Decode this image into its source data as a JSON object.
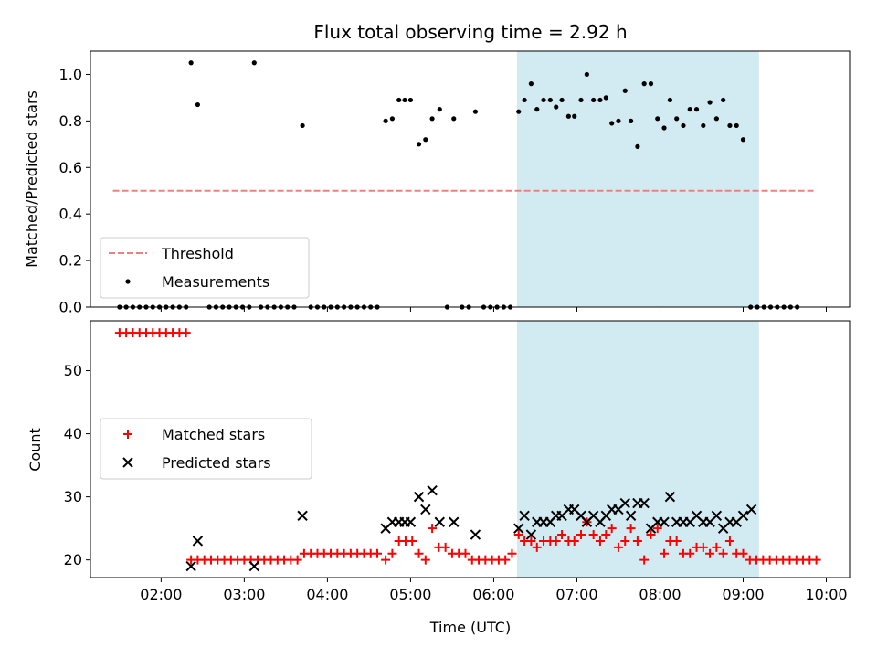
{
  "chart_data": [
    {
      "type": "scatter",
      "title": "Flux total observing time = 2.92 h",
      "ylabel": "Matched/Predicted stars",
      "xlabel": "",
      "xlim": [
        1.15,
        10.28
      ],
      "ylim": [
        0.0,
        1.1
      ],
      "yticks": [
        0.0,
        0.2,
        0.4,
        0.6,
        0.8,
        1.0
      ],
      "xticks": [
        2,
        3,
        4,
        5,
        6,
        7,
        8,
        9,
        10
      ],
      "shaded_span": [
        6.28,
        9.19
      ],
      "shaded_color": "#add8e6",
      "legend_position": "lower-left",
      "threshold": {
        "name": "Threshold",
        "x": [
          1.42,
          9.85
        ],
        "y": 0.5,
        "color": "#f08080",
        "style": "dashed"
      },
      "series": [
        {
          "name": "Measurements",
          "color": "#000000",
          "marker": "dot",
          "points": [
            [
              1.5,
              0
            ],
            [
              1.58,
              0
            ],
            [
              1.66,
              0
            ],
            [
              1.74,
              0
            ],
            [
              1.82,
              0
            ],
            [
              1.9,
              0
            ],
            [
              1.98,
              0
            ],
            [
              2.06,
              0
            ],
            [
              2.14,
              0
            ],
            [
              2.22,
              0
            ],
            [
              2.3,
              0
            ],
            [
              2.36,
              1.05
            ],
            [
              2.44,
              0.87
            ],
            [
              2.58,
              0
            ],
            [
              2.66,
              0
            ],
            [
              2.74,
              0
            ],
            [
              2.82,
              0
            ],
            [
              2.9,
              0
            ],
            [
              2.98,
              0
            ],
            [
              3.06,
              0
            ],
            [
              3.12,
              1.05
            ],
            [
              3.2,
              0
            ],
            [
              3.28,
              0
            ],
            [
              3.36,
              0
            ],
            [
              3.44,
              0
            ],
            [
              3.52,
              0
            ],
            [
              3.6,
              0
            ],
            [
              3.7,
              0.78
            ],
            [
              3.8,
              0
            ],
            [
              3.88,
              0
            ],
            [
              3.96,
              0
            ],
            [
              4.04,
              0
            ],
            [
              4.12,
              0
            ],
            [
              4.2,
              0
            ],
            [
              4.28,
              0
            ],
            [
              4.36,
              0
            ],
            [
              4.44,
              0
            ],
            [
              4.52,
              0
            ],
            [
              4.6,
              0
            ],
            [
              4.7,
              0.8
            ],
            [
              4.78,
              0.81
            ],
            [
              4.86,
              0.89
            ],
            [
              4.93,
              0.89
            ],
            [
              5.0,
              0.89
            ],
            [
              5.1,
              0.7
            ],
            [
              5.18,
              0.72
            ],
            [
              5.26,
              0.81
            ],
            [
              5.35,
              0.85
            ],
            [
              5.44,
              0
            ],
            [
              5.52,
              0.81
            ],
            [
              5.62,
              0
            ],
            [
              5.7,
              0
            ],
            [
              5.78,
              0.84
            ],
            [
              5.88,
              0
            ],
            [
              5.96,
              0
            ],
            [
              6.04,
              0
            ],
            [
              6.12,
              0
            ],
            [
              6.2,
              0
            ],
            [
              6.3,
              0.84
            ],
            [
              6.37,
              0.89
            ],
            [
              6.45,
              0.96
            ],
            [
              6.52,
              0.85
            ],
            [
              6.6,
              0.89
            ],
            [
              6.68,
              0.89
            ],
            [
              6.75,
              0.86
            ],
            [
              6.82,
              0.89
            ],
            [
              6.9,
              0.82
            ],
            [
              6.97,
              0.82
            ],
            [
              7.05,
              0.89
            ],
            [
              7.12,
              1.0
            ],
            [
              7.2,
              0.89
            ],
            [
              7.28,
              0.89
            ],
            [
              7.35,
              0.9
            ],
            [
              7.42,
              0.79
            ],
            [
              7.5,
              0.8
            ],
            [
              7.58,
              0.93
            ],
            [
              7.65,
              0.8
            ],
            [
              7.73,
              0.69
            ],
            [
              7.81,
              0.96
            ],
            [
              7.89,
              0.96
            ],
            [
              7.97,
              0.81
            ],
            [
              8.05,
              0.77
            ],
            [
              8.12,
              0.89
            ],
            [
              8.2,
              0.81
            ],
            [
              8.28,
              0.78
            ],
            [
              8.36,
              0.85
            ],
            [
              8.44,
              0.85
            ],
            [
              8.52,
              0.78
            ],
            [
              8.6,
              0.88
            ],
            [
              8.68,
              0.81
            ],
            [
              8.76,
              0.89
            ],
            [
              8.84,
              0.78
            ],
            [
              8.92,
              0.78
            ],
            [
              9.0,
              0.72
            ],
            [
              9.09,
              0
            ],
            [
              9.17,
              0
            ],
            [
              9.25,
              0
            ],
            [
              9.33,
              0
            ],
            [
              9.41,
              0
            ],
            [
              9.49,
              0
            ],
            [
              9.57,
              0
            ],
            [
              9.65,
              0
            ]
          ]
        }
      ]
    },
    {
      "type": "scatter",
      "title": "",
      "ylabel": "Count",
      "xlabel": "Time (UTC)",
      "xlim": [
        1.15,
        10.28
      ],
      "ylim": [
        17.2,
        57.9
      ],
      "yticks": [
        20,
        30,
        40,
        50
      ],
      "xticks": [
        2,
        3,
        4,
        5,
        6,
        7,
        8,
        9,
        10
      ],
      "xtick_labels": [
        "02:00",
        "03:00",
        "04:00",
        "05:00",
        "06:00",
        "07:00",
        "08:00",
        "09:00",
        "10:00"
      ],
      "shaded_span": [
        6.28,
        9.19
      ],
      "shaded_color": "#add8e6",
      "legend_position": "center-left",
      "series": [
        {
          "name": "Matched stars",
          "color": "#ff0000",
          "marker": "plus",
          "points": [
            [
              1.5,
              56
            ],
            [
              1.58,
              56
            ],
            [
              1.66,
              56
            ],
            [
              1.74,
              56
            ],
            [
              1.82,
              56
            ],
            [
              1.9,
              56
            ],
            [
              1.98,
              56
            ],
            [
              2.06,
              56
            ],
            [
              2.14,
              56
            ],
            [
              2.22,
              56
            ],
            [
              2.3,
              56
            ],
            [
              2.36,
              20
            ],
            [
              2.44,
              20
            ],
            [
              2.52,
              20
            ],
            [
              2.6,
              20
            ],
            [
              2.68,
              20
            ],
            [
              2.76,
              20
            ],
            [
              2.84,
              20
            ],
            [
              2.92,
              20
            ],
            [
              3.0,
              20
            ],
            [
              3.08,
              20
            ],
            [
              3.16,
              20
            ],
            [
              3.24,
              20
            ],
            [
              3.32,
              20
            ],
            [
              3.4,
              20
            ],
            [
              3.48,
              20
            ],
            [
              3.56,
              20
            ],
            [
              3.64,
              20
            ],
            [
              3.72,
              21
            ],
            [
              3.8,
              21
            ],
            [
              3.88,
              21
            ],
            [
              3.96,
              21
            ],
            [
              4.04,
              21
            ],
            [
              4.12,
              21
            ],
            [
              4.2,
              21
            ],
            [
              4.28,
              21
            ],
            [
              4.36,
              21
            ],
            [
              4.44,
              21
            ],
            [
              4.52,
              21
            ],
            [
              4.6,
              21
            ],
            [
              4.7,
              20
            ],
            [
              4.78,
              21
            ],
            [
              4.86,
              23
            ],
            [
              4.94,
              23
            ],
            [
              5.02,
              23
            ],
            [
              5.1,
              21
            ],
            [
              5.18,
              20
            ],
            [
              5.26,
              25
            ],
            [
              5.34,
              22
            ],
            [
              5.42,
              22
            ],
            [
              5.5,
              21
            ],
            [
              5.58,
              21
            ],
            [
              5.66,
              21
            ],
            [
              5.74,
              20
            ],
            [
              5.82,
              20
            ],
            [
              5.9,
              20
            ],
            [
              5.98,
              20
            ],
            [
              6.06,
              20
            ],
            [
              6.14,
              20
            ],
            [
              6.22,
              21
            ],
            [
              6.3,
              24
            ],
            [
              6.37,
              23
            ],
            [
              6.45,
              23
            ],
            [
              6.52,
              22
            ],
            [
              6.6,
              23
            ],
            [
              6.68,
              23
            ],
            [
              6.75,
              23
            ],
            [
              6.82,
              24
            ],
            [
              6.9,
              23
            ],
            [
              6.97,
              23
            ],
            [
              7.05,
              24
            ],
            [
              7.12,
              26
            ],
            [
              7.2,
              24
            ],
            [
              7.28,
              23
            ],
            [
              7.35,
              24
            ],
            [
              7.42,
              25
            ],
            [
              7.5,
              22
            ],
            [
              7.58,
              23
            ],
            [
              7.65,
              25
            ],
            [
              7.73,
              23
            ],
            [
              7.81,
              20
            ],
            [
              7.89,
              24
            ],
            [
              7.97,
              25
            ],
            [
              8.05,
              21
            ],
            [
              8.12,
              23
            ],
            [
              8.2,
              23
            ],
            [
              8.28,
              21
            ],
            [
              8.36,
              21
            ],
            [
              8.44,
              22
            ],
            [
              8.52,
              22
            ],
            [
              8.6,
              21
            ],
            [
              8.68,
              22
            ],
            [
              8.76,
              21
            ],
            [
              8.84,
              23
            ],
            [
              8.92,
              21
            ],
            [
              9.0,
              21
            ],
            [
              9.08,
              20
            ],
            [
              9.16,
              20
            ],
            [
              9.24,
              20
            ],
            [
              9.32,
              20
            ],
            [
              9.4,
              20
            ],
            [
              9.48,
              20
            ],
            [
              9.56,
              20
            ],
            [
              9.64,
              20
            ],
            [
              9.72,
              20
            ],
            [
              9.8,
              20
            ],
            [
              9.88,
              20
            ]
          ]
        },
        {
          "name": "Predicted stars",
          "color": "#000000",
          "marker": "x",
          "points": [
            [
              2.36,
              19
            ],
            [
              2.44,
              23
            ],
            [
              3.12,
              19
            ],
            [
              3.7,
              27
            ],
            [
              4.7,
              25
            ],
            [
              4.78,
              26
            ],
            [
              4.86,
              26
            ],
            [
              4.93,
              26
            ],
            [
              5.0,
              26
            ],
            [
              5.1,
              30
            ],
            [
              5.18,
              28
            ],
            [
              5.26,
              31
            ],
            [
              5.35,
              26
            ],
            [
              5.52,
              26
            ],
            [
              5.78,
              24
            ],
            [
              6.3,
              25
            ],
            [
              6.37,
              27
            ],
            [
              6.45,
              24
            ],
            [
              6.52,
              26
            ],
            [
              6.6,
              26
            ],
            [
              6.68,
              26
            ],
            [
              6.75,
              27
            ],
            [
              6.82,
              27
            ],
            [
              6.9,
              28
            ],
            [
              6.97,
              28
            ],
            [
              7.05,
              27
            ],
            [
              7.12,
              26
            ],
            [
              7.2,
              27
            ],
            [
              7.28,
              26
            ],
            [
              7.35,
              27
            ],
            [
              7.42,
              28
            ],
            [
              7.5,
              28
            ],
            [
              7.58,
              29
            ],
            [
              7.65,
              27
            ],
            [
              7.73,
              29
            ],
            [
              7.81,
              29
            ],
            [
              7.89,
              25
            ],
            [
              7.97,
              26
            ],
            [
              8.05,
              26
            ],
            [
              8.12,
              30
            ],
            [
              8.2,
              26
            ],
            [
              8.28,
              26
            ],
            [
              8.36,
              26
            ],
            [
              8.44,
              27
            ],
            [
              8.52,
              26
            ],
            [
              8.6,
              26
            ],
            [
              8.68,
              27
            ],
            [
              8.76,
              25
            ],
            [
              8.84,
              26
            ],
            [
              8.92,
              26
            ],
            [
              9.0,
              27
            ],
            [
              9.1,
              28
            ]
          ]
        }
      ]
    }
  ]
}
